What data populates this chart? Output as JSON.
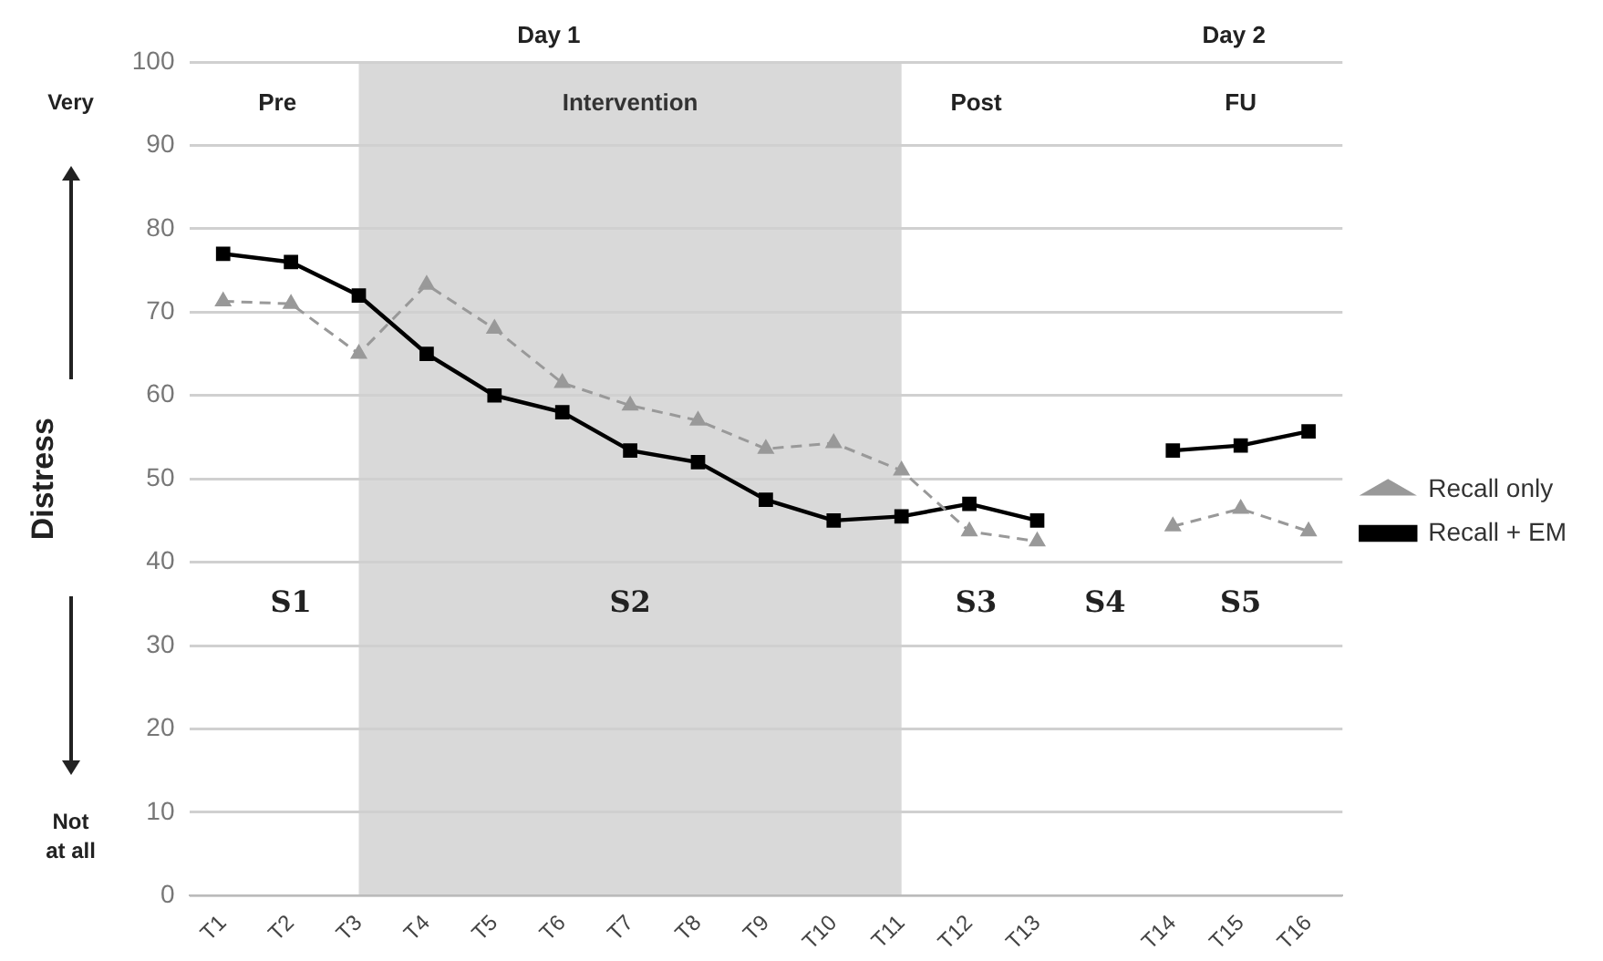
{
  "chart_data": {
    "type": "line",
    "ylabel": "Distress",
    "categories": [
      "T1",
      "T2",
      "T3",
      "T4",
      "T5",
      "T6",
      "T7",
      "T8",
      "T9",
      "T10",
      "T11",
      "T12",
      "T13",
      null,
      "T14",
      "T15",
      "T16"
    ],
    "series": [
      {
        "name": "Recall only",
        "color": "#999999",
        "marker": "triangle",
        "line_style": "dashed",
        "values": [
          71.3,
          71,
          65,
          73.3,
          68,
          61.5,
          58.8,
          57,
          53.6,
          54.3,
          51,
          43.7,
          42.5,
          null,
          44.3,
          46.4,
          43.7
        ]
      },
      {
        "name": "Recall + EM",
        "color": "#000000",
        "marker": "square",
        "line_style": "solid",
        "values": [
          77,
          76,
          72,
          65,
          60,
          58,
          53.4,
          52,
          47.5,
          45,
          45.5,
          47,
          45,
          null,
          53.4,
          54,
          55.7
        ]
      }
    ],
    "ylim": [
      0,
      100
    ],
    "yticks": [
      0,
      10,
      20,
      30,
      40,
      50,
      60,
      70,
      80,
      90,
      100
    ],
    "grid": "y",
    "legend": "right",
    "bands": [
      {
        "axis": "x",
        "from": "T3",
        "to": "T11",
        "label": "Intervention",
        "color": "#d9d9d9"
      }
    ],
    "annotations": [
      "Day 1",
      "Day 2",
      "Pre",
      "Post",
      "FU",
      "S1",
      "S2",
      "S3",
      "S4",
      "S5",
      "Very",
      "Not at all"
    ]
  }
}
